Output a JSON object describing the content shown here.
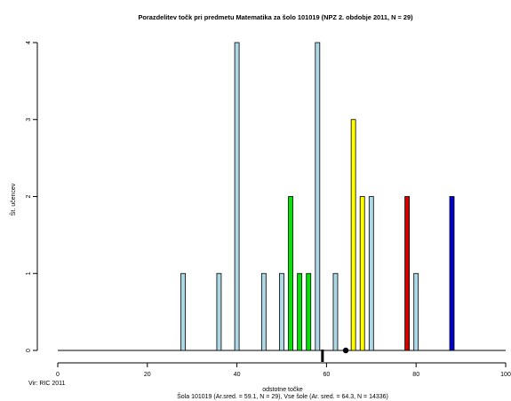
{
  "chart_data": {
    "type": "bar",
    "title": "Porazdelitev točk pri predmetu Matematika za šolo 101019 (NPZ 2. obdobje 2011, N = 29)",
    "xlabel": "odstotne točke",
    "ylabel": "Št. učencev",
    "subtitle": "Šola 101019 (Ar.sred. = 59.1, N = 29), Vse šole (Ar. sred. = 64.3, N = 14336)",
    "source": "Vir: RIC 2011",
    "xlim": [
      0,
      100
    ],
    "ylim": [
      0,
      4
    ],
    "xticks": [
      0,
      20,
      40,
      60,
      80,
      100
    ],
    "yticks": [
      0,
      1,
      2,
      3,
      4
    ],
    "bars": [
      {
        "x": 28,
        "value": 1,
        "color": "#add8e6"
      },
      {
        "x": 36,
        "value": 1,
        "color": "#add8e6"
      },
      {
        "x": 40,
        "value": 4,
        "color": "#add8e6"
      },
      {
        "x": 46,
        "value": 1,
        "color": "#add8e6"
      },
      {
        "x": 50,
        "value": 1,
        "color": "#add8e6"
      },
      {
        "x": 52,
        "value": 2,
        "color": "#00e600"
      },
      {
        "x": 54,
        "value": 1,
        "color": "#00e600"
      },
      {
        "x": 56,
        "value": 1,
        "color": "#00e600"
      },
      {
        "x": 58,
        "value": 4,
        "color": "#add8e6"
      },
      {
        "x": 62,
        "value": 1,
        "color": "#add8e6"
      },
      {
        "x": 66,
        "value": 3,
        "color": "#ffff00"
      },
      {
        "x": 68,
        "value": 2,
        "color": "#ffff00"
      },
      {
        "x": 70,
        "value": 2,
        "color": "#add8e6"
      },
      {
        "x": 78,
        "value": 2,
        "color": "#cc0000"
      },
      {
        "x": 80,
        "value": 1,
        "color": "#add8e6"
      },
      {
        "x": 88,
        "value": 2,
        "color": "#0000cc"
      }
    ],
    "school_mean": 59.1,
    "all_schools_mean": 64.3
  }
}
